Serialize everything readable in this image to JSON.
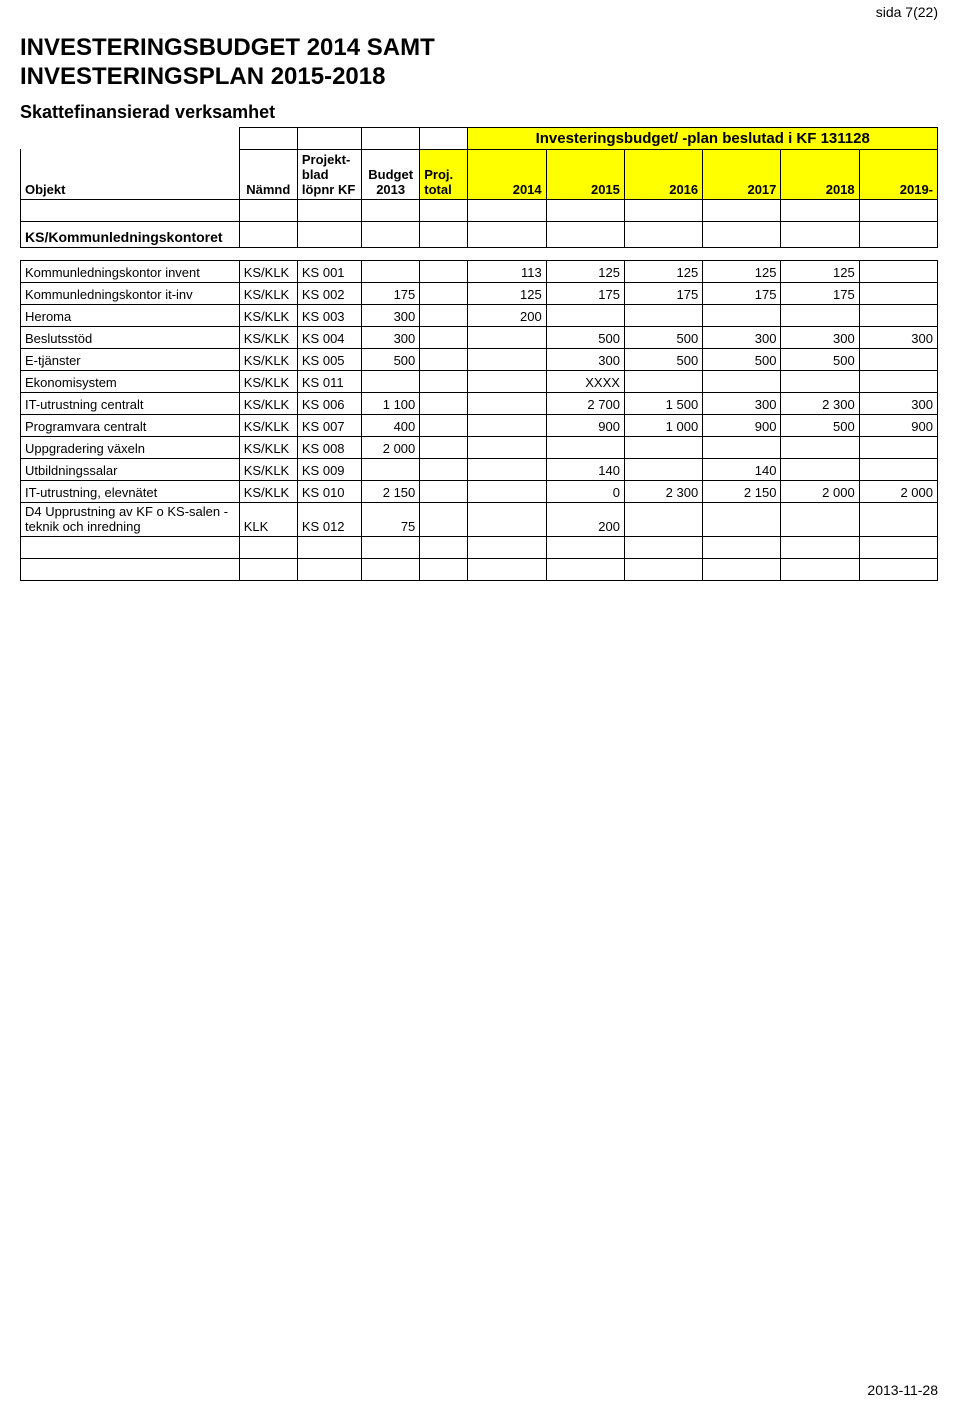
{
  "page_label": "sida 7(22)",
  "title_line1": "INVESTERINGSBUDGET 2014 SAMT",
  "title_line2": "INVESTERINGSPLAN 2015-2018",
  "subtitle": "Skattefinansierad verksamhet",
  "banner_text": "Investeringsbudget/ -plan beslutad i KF 131128",
  "footer_date": "2013-11-28",
  "colors": {
    "highlight": "#ffff00",
    "grid": "#000000",
    "background": "#ffffff"
  },
  "columns": {
    "objekt": "Objekt",
    "namnd": "Nämnd",
    "lopnr_line1": "Projekt-",
    "lopnr_line2": "blad",
    "lopnr_line3": "löpnr KF",
    "budget_line1": "Budget",
    "budget_line2": "2013",
    "proj_line1": "Proj.",
    "proj_line2": "total",
    "y2014": "2014",
    "y2015": "2015",
    "y2016": "2016",
    "y2017": "2017",
    "y2018": "2018",
    "y2019": "2019-"
  },
  "section_heading": "KS/Kommunledningskontoret",
  "rows": [
    {
      "objekt": "Kommunledningskontor invent",
      "namnd": "KS/KLK",
      "lopnr": "KS 001",
      "budget": "",
      "proj": "",
      "y14": "113",
      "y15": "125",
      "y16": "125",
      "y17": "125",
      "y18": "125",
      "y19": ""
    },
    {
      "objekt": "Kommunledningskontor it-inv",
      "namnd": "KS/KLK",
      "lopnr": "KS 002",
      "budget": "175",
      "proj": "",
      "y14": "125",
      "y15": "175",
      "y16": "175",
      "y17": "175",
      "y18": "175",
      "y19": ""
    },
    {
      "objekt": "Heroma",
      "namnd": "KS/KLK",
      "lopnr": "KS 003",
      "budget": "300",
      "proj": "",
      "y14": "200",
      "y15": "",
      "y16": "",
      "y17": "",
      "y18": "",
      "y19": ""
    },
    {
      "objekt": "Beslutsstöd",
      "namnd": "KS/KLK",
      "lopnr": "KS 004",
      "budget": "300",
      "proj": "",
      "y14": "",
      "y15": "500",
      "y16": "500",
      "y17": "300",
      "y18": "300",
      "y19": "300"
    },
    {
      "objekt": "E-tjänster",
      "namnd": "KS/KLK",
      "lopnr": "KS 005",
      "budget": "500",
      "proj": "",
      "y14": "",
      "y15": "300",
      "y16": "500",
      "y17": "500",
      "y18": "500",
      "y19": ""
    },
    {
      "objekt": "Ekonomisystem",
      "namnd": "KS/KLK",
      "lopnr": "KS 011",
      "budget": "",
      "proj": "",
      "y14": "",
      "y15": "XXXX",
      "y16": "",
      "y17": "",
      "y18": "",
      "y19": ""
    },
    {
      "objekt": "IT-utrustning centralt",
      "namnd": "KS/KLK",
      "lopnr": "KS 006",
      "budget": "1 100",
      "proj": "",
      "y14": "",
      "y15": "2 700",
      "y16": "1 500",
      "y17": "300",
      "y18": "2 300",
      "y19": "300"
    },
    {
      "objekt": "Programvara centralt",
      "namnd": "KS/KLK",
      "lopnr": "KS 007",
      "budget": "400",
      "proj": "",
      "y14": "",
      "y15": "900",
      "y16": "1 000",
      "y17": "900",
      "y18": "500",
      "y19": "900"
    },
    {
      "objekt": "Uppgradering växeln",
      "namnd": "KS/KLK",
      "lopnr": "KS 008",
      "budget": "2 000",
      "proj": "",
      "y14": "",
      "y15": "",
      "y16": "",
      "y17": "",
      "y18": "",
      "y19": ""
    },
    {
      "objekt": "Utbildningssalar",
      "namnd": "KS/KLK",
      "lopnr": "KS 009",
      "budget": "",
      "proj": "",
      "y14": "",
      "y15": "140",
      "y16": "",
      "y17": "140",
      "y18": "",
      "y19": ""
    },
    {
      "objekt": "IT-utrustning, elevnätet",
      "namnd": "KS/KLK",
      "lopnr": "KS 010",
      "budget": "2 150",
      "proj": "",
      "y14": "",
      "y15": "0",
      "y16": "2 300",
      "y17": "2 150",
      "y18": "2 000",
      "y19": "2 000"
    },
    {
      "objekt": "D4 Upprustning av KF o KS-salen - teknik och inredning",
      "namnd": "KLK",
      "lopnr": "KS 012",
      "budget": "75",
      "proj": "",
      "y14": "",
      "y15": "200",
      "y16": "",
      "y17": "",
      "y18": "",
      "y19": ""
    }
  ]
}
